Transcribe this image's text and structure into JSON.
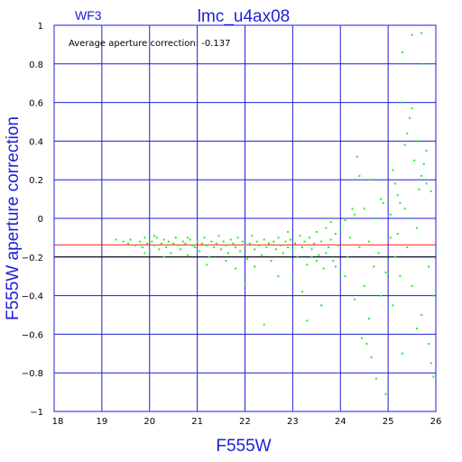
{
  "chart_data": {
    "type": "scatter",
    "title": "lmc_u4ax08",
    "chip_label": "WF3",
    "annotation": "Average aperture correction: -0.137",
    "xlabel": "F555W",
    "ylabel": "F555W aperture correction",
    "xlim": [
      18,
      26
    ],
    "ylim": [
      -1,
      1
    ],
    "x_ticks": [
      18,
      19,
      20,
      21,
      22,
      23,
      24,
      25,
      26
    ],
    "y_ticks": [
      -1,
      -0.8,
      -0.6,
      -0.4,
      -0.2,
      0,
      0.2,
      0.4,
      0.6,
      0.8,
      1
    ],
    "x_tick_labels": [
      "18",
      "19",
      "20",
      "21",
      "22",
      "23",
      "24",
      "25",
      "26"
    ],
    "y_tick_labels": [
      "−1",
      "−0.8",
      "−0.6",
      "−0.4",
      "−0.2",
      "0",
      "0.2",
      "0.4",
      "0.6",
      "0.8",
      "1"
    ],
    "grid": true,
    "reference_lines": [
      {
        "y": -0.137,
        "color": "#ff2020"
      },
      {
        "y": -0.2,
        "color": "#000000"
      }
    ],
    "point_color": "#22ee22",
    "axis_color": "#1f1fd6",
    "points": [
      [
        19.3,
        -0.11
      ],
      [
        19.45,
        -0.12
      ],
      [
        19.55,
        -0.13
      ],
      [
        19.6,
        -0.11
      ],
      [
        19.7,
        -0.14
      ],
      [
        19.8,
        -0.12
      ],
      [
        19.85,
        -0.15
      ],
      [
        19.9,
        -0.1
      ],
      [
        19.95,
        -0.13
      ],
      [
        20.0,
        -0.17
      ],
      [
        20.05,
        -0.12
      ],
      [
        20.1,
        -0.14
      ],
      [
        20.15,
        -0.1
      ],
      [
        20.2,
        -0.16
      ],
      [
        20.25,
        -0.13
      ],
      [
        20.3,
        -0.11
      ],
      [
        20.35,
        -0.15
      ],
      [
        20.4,
        -0.12
      ],
      [
        20.45,
        -0.18
      ],
      [
        20.5,
        -0.13
      ],
      [
        20.55,
        -0.1
      ],
      [
        20.6,
        -0.14
      ],
      [
        20.65,
        -0.16
      ],
      [
        20.7,
        -0.12
      ],
      [
        20.75,
        -0.13
      ],
      [
        20.8,
        -0.19
      ],
      [
        20.85,
        -0.11
      ],
      [
        20.9,
        -0.14
      ],
      [
        20.95,
        -0.15
      ],
      [
        21.0,
        -0.12
      ],
      [
        21.05,
        -0.17
      ],
      [
        21.1,
        -0.13
      ],
      [
        21.15,
        -0.1
      ],
      [
        21.2,
        -0.14
      ],
      [
        21.25,
        -0.2
      ],
      [
        21.3,
        -0.12
      ],
      [
        21.35,
        -0.15
      ],
      [
        21.4,
        -0.13
      ],
      [
        21.45,
        -0.09
      ],
      [
        21.5,
        -0.16
      ],
      [
        21.55,
        -0.12
      ],
      [
        21.6,
        -0.14
      ],
      [
        21.65,
        -0.18
      ],
      [
        21.7,
        -0.11
      ],
      [
        21.75,
        -0.13
      ],
      [
        21.8,
        -0.15
      ],
      [
        21.85,
        -0.1
      ],
      [
        21.9,
        -0.17
      ],
      [
        21.95,
        -0.12
      ],
      [
        22.0,
        -0.14
      ],
      [
        22.05,
        -0.21
      ],
      [
        22.1,
        -0.13
      ],
      [
        22.15,
        -0.09
      ],
      [
        22.2,
        -0.16
      ],
      [
        22.25,
        -0.12
      ],
      [
        22.3,
        -0.14
      ],
      [
        22.35,
        -0.19
      ],
      [
        22.4,
        -0.11
      ],
      [
        22.45,
        -0.15
      ],
      [
        22.5,
        -0.13
      ],
      [
        22.55,
        -0.22
      ],
      [
        22.6,
        -0.12
      ],
      [
        22.65,
        -0.16
      ],
      [
        22.7,
        -0.1
      ],
      [
        22.75,
        -0.14
      ],
      [
        22.8,
        -0.18
      ],
      [
        22.85,
        -0.12
      ],
      [
        22.9,
        -0.15
      ],
      [
        22.95,
        -0.11
      ],
      [
        23.0,
        -0.17
      ],
      [
        23.05,
        -0.13
      ],
      [
        23.1,
        -0.2
      ],
      [
        23.15,
        -0.09
      ],
      [
        23.2,
        -0.15
      ],
      [
        23.25,
        -0.12
      ],
      [
        23.3,
        -0.24
      ],
      [
        23.35,
        -0.1
      ],
      [
        23.4,
        -0.16
      ],
      [
        23.45,
        -0.13
      ],
      [
        23.5,
        -0.07
      ],
      [
        23.55,
        -0.19
      ],
      [
        23.6,
        -0.12
      ],
      [
        23.65,
        -0.26
      ],
      [
        23.7,
        -0.05
      ],
      [
        23.75,
        -0.15
      ],
      [
        23.8,
        -0.11
      ],
      [
        23.85,
        -0.22
      ],
      [
        23.9,
        -0.08
      ],
      [
        23.95,
        -0.14
      ],
      [
        24.0,
        -0.28
      ],
      [
        20.3,
        -0.2
      ],
      [
        21.2,
        -0.24
      ],
      [
        21.8,
        -0.26
      ],
      [
        22.0,
        -0.34
      ],
      [
        22.4,
        -0.55
      ],
      [
        22.7,
        -0.3
      ],
      [
        23.2,
        -0.38
      ],
      [
        23.0,
        -0.31
      ],
      [
        23.3,
        -0.53
      ],
      [
        23.6,
        -0.45
      ],
      [
        23.4,
        -0.2
      ],
      [
        22.9,
        -0.07
      ],
      [
        23.8,
        -0.02
      ],
      [
        24.0,
        -0.05
      ],
      [
        24.1,
        -0.01
      ],
      [
        24.2,
        -0.1
      ],
      [
        24.3,
        0.02
      ],
      [
        24.4,
        -0.15
      ],
      [
        24.5,
        0.05
      ],
      [
        24.6,
        -0.12
      ],
      [
        24.1,
        -0.3
      ],
      [
        24.3,
        -0.42
      ],
      [
        24.5,
        -0.35
      ],
      [
        24.6,
        -0.52
      ],
      [
        24.7,
        -0.25
      ],
      [
        24.8,
        -0.18
      ],
      [
        24.9,
        0.08
      ],
      [
        24.95,
        -0.28
      ],
      [
        24.4,
        0.22
      ],
      [
        24.6,
        0.2
      ],
      [
        24.35,
        0.32
      ],
      [
        24.55,
        -0.65
      ],
      [
        24.45,
        -0.62
      ],
      [
        24.65,
        -0.72
      ],
      [
        24.75,
        -0.83
      ],
      [
        24.85,
        -0.4
      ],
      [
        24.95,
        -0.91
      ],
      [
        25.0,
        0.1
      ],
      [
        25.05,
        -0.1
      ],
      [
        25.1,
        0.25
      ],
      [
        25.15,
        -0.2
      ],
      [
        25.2,
        0.12
      ],
      [
        25.25,
        -0.3
      ],
      [
        25.3,
        0.6
      ],
      [
        25.35,
        0.05
      ],
      [
        25.4,
        -0.15
      ],
      [
        25.3,
        0.86
      ],
      [
        25.4,
        0.44
      ],
      [
        25.45,
        0.52
      ],
      [
        25.5,
        0.57
      ],
      [
        25.55,
        0.3
      ],
      [
        25.6,
        -0.05
      ],
      [
        25.65,
        0.15
      ],
      [
        25.7,
        0.22
      ],
      [
        25.75,
        0.28
      ],
      [
        25.8,
        0.18
      ],
      [
        25.85,
        -0.25
      ],
      [
        25.9,
        0.14
      ],
      [
        25.95,
        -0.4
      ],
      [
        25.5,
        0.95
      ],
      [
        25.7,
        0.96
      ],
      [
        25.75,
        0.8
      ],
      [
        25.8,
        0.35
      ],
      [
        25.9,
        -0.75
      ],
      [
        25.6,
        -0.57
      ],
      [
        25.85,
        -0.65
      ],
      [
        25.95,
        -0.82
      ],
      [
        25.5,
        -0.35
      ],
      [
        25.7,
        -0.5
      ],
      [
        25.3,
        -0.7
      ],
      [
        25.1,
        -0.45
      ],
      [
        25.2,
        -0.08
      ],
      [
        25.35,
        0.38
      ],
      [
        25.15,
        0.18
      ],
      [
        25.6,
        0.4
      ],
      [
        25.45,
        0.0
      ],
      [
        25.25,
        0.08
      ],
      [
        25.05,
        0.02
      ],
      [
        24.85,
        0.1
      ],
      [
        24.75,
        0.0
      ],
      [
        24.25,
        0.05
      ],
      [
        24.15,
        -0.2
      ],
      [
        23.9,
        -0.25
      ],
      [
        23.7,
        -0.18
      ],
      [
        23.5,
        -0.22
      ],
      [
        22.2,
        -0.25
      ],
      [
        21.6,
        -0.22
      ],
      [
        20.8,
        -0.1
      ],
      [
        20.1,
        -0.09
      ],
      [
        19.9,
        -0.18
      ]
    ]
  }
}
